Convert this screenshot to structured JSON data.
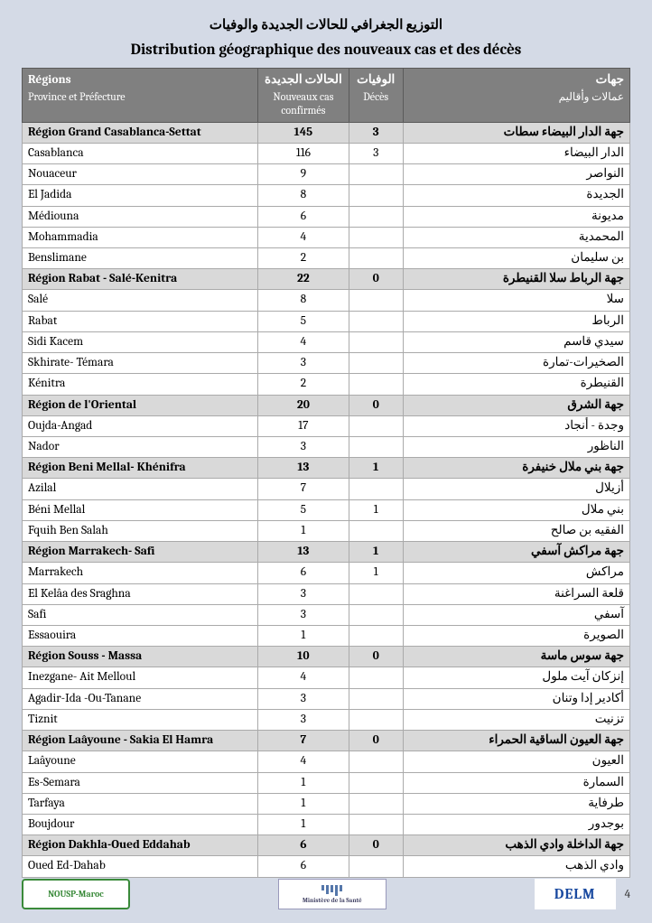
{
  "title_ar": "التوزيع الجغرافي للحالات الجديدة والوفيات",
  "title_fr": "Distribution géographique des nouveaux cas et des décès",
  "header": {
    "regions_fr": "Régions",
    "regions_sub_fr": "Province et Préfecture",
    "cases_ar": "الحالات الجديدة",
    "cases_fr": "Nouveaux cas confirmés",
    "deaths_ar": "الوفيات",
    "deaths_fr": "Décès",
    "regions_ar": "جهات",
    "regions_sub_ar": "عمالات وأقاليم"
  },
  "rows": [
    {
      "type": "region",
      "fr": "Région Grand Casablanca-Settat",
      "cases": "145",
      "deaths": "3",
      "ar": "جهة الدار البيضاء سطات"
    },
    {
      "type": "sub",
      "fr": "Casablanca",
      "cases": "116",
      "deaths": "3",
      "ar": "الدار البيضاء"
    },
    {
      "type": "sub",
      "fr": "Nouaceur",
      "cases": "9",
      "deaths": "",
      "ar": "النواصر"
    },
    {
      "type": "sub",
      "fr": "El Jadida",
      "cases": "8",
      "deaths": "",
      "ar": "الجديدة"
    },
    {
      "type": "sub",
      "fr": "Médiouna",
      "cases": "6",
      "deaths": "",
      "ar": "مديونة"
    },
    {
      "type": "sub",
      "fr": "Mohammadia",
      "cases": "4",
      "deaths": "",
      "ar": "المحمدية"
    },
    {
      "type": "sub",
      "fr": "Benslimane",
      "cases": "2",
      "deaths": "",
      "ar": "بن سليمان"
    },
    {
      "type": "region",
      "fr": "Région Rabat - Salé-Kenitra",
      "cases": "22",
      "deaths": "0",
      "ar": "جهة الرباط سلا القنيطرة"
    },
    {
      "type": "sub",
      "fr": "Salé",
      "cases": "8",
      "deaths": "",
      "ar": "سلا"
    },
    {
      "type": "sub",
      "fr": "Rabat",
      "cases": "5",
      "deaths": "",
      "ar": "الرباط"
    },
    {
      "type": "sub",
      "fr": "Sidi Kacem",
      "cases": "4",
      "deaths": "",
      "ar": "سيدي قاسم"
    },
    {
      "type": "sub",
      "fr": "Skhirate- Témara",
      "cases": "3",
      "deaths": "",
      "ar": "الصخيرات-تمارة"
    },
    {
      "type": "sub",
      "fr": "Kénitra",
      "cases": "2",
      "deaths": "",
      "ar": "القنيطرة"
    },
    {
      "type": "region",
      "fr": "Région de l'Oriental",
      "cases": "20",
      "deaths": "0",
      "ar": "جهة الشرق"
    },
    {
      "type": "sub",
      "fr": "Oujda-Angad",
      "cases": "17",
      "deaths": "",
      "ar": "وجدة - أنجاد"
    },
    {
      "type": "sub",
      "fr": "Nador",
      "cases": "3",
      "deaths": "",
      "ar": "الناظور"
    },
    {
      "type": "region",
      "fr": "Région Beni Mellal- Khénifra",
      "cases": "13",
      "deaths": "1",
      "ar": "جهة بني ملال خنيفرة"
    },
    {
      "type": "sub",
      "fr": "Azilal",
      "cases": "7",
      "deaths": "",
      "ar": "أزيلال"
    },
    {
      "type": "sub",
      "fr": "Béni Mellal",
      "cases": "5",
      "deaths": "1",
      "ar": "بني ملال"
    },
    {
      "type": "sub",
      "fr": "Fquih Ben Salah",
      "cases": "1",
      "deaths": "",
      "ar": "الفقيه بن صالح"
    },
    {
      "type": "region",
      "fr": "Région Marrakech- Safi",
      "cases": "13",
      "deaths": "1",
      "ar": "جهة مراكش آسفي"
    },
    {
      "type": "sub",
      "fr": "Marrakech",
      "cases": "6",
      "deaths": "1",
      "ar": "مراكش"
    },
    {
      "type": "sub",
      "fr": "El Kelâa des  Sraghna",
      "cases": "3",
      "deaths": "",
      "ar": "قلعة السراغنة"
    },
    {
      "type": "sub",
      "fr": "Safi",
      "cases": "3",
      "deaths": "",
      "ar": "آسفي"
    },
    {
      "type": "sub",
      "fr": "Essaouira",
      "cases": "1",
      "deaths": "",
      "ar": "الصويرة"
    },
    {
      "type": "region",
      "fr": "Région Souss - Massa",
      "cases": "10",
      "deaths": "0",
      "ar": "جهة سوس ماسة"
    },
    {
      "type": "sub",
      "fr": "Inezgane- Ait Melloul",
      "cases": "4",
      "deaths": "",
      "ar": "إنزكان آيت ملول"
    },
    {
      "type": "sub",
      "fr": "Agadir-Ida -Ou-Tanane",
      "cases": "3",
      "deaths": "",
      "ar": "أكادير إدا وتنان"
    },
    {
      "type": "sub",
      "fr": "Tiznit",
      "cases": "3",
      "deaths": "",
      "ar": "تزنيت"
    },
    {
      "type": "region",
      "fr": "Région Laâyoune - Sakia El Hamra",
      "cases": "7",
      "deaths": "0",
      "ar": "جهة العيون الساقية الحمراء"
    },
    {
      "type": "sub",
      "fr": "Laâyoune",
      "cases": "4",
      "deaths": "",
      "ar": "العيون"
    },
    {
      "type": "sub",
      "fr": "Es-Semara",
      "cases": "1",
      "deaths": "",
      "ar": "السمارة"
    },
    {
      "type": "sub",
      "fr": "Tarfaya",
      "cases": "1",
      "deaths": "",
      "ar": "طرفاية"
    },
    {
      "type": "sub",
      "fr": "Boujdour",
      "cases": "1",
      "deaths": "",
      "ar": "بوجدور"
    },
    {
      "type": "region",
      "fr": "Région Dakhla-Oued Eddahab",
      "cases": "6",
      "deaths": "0",
      "ar": "جهة الداخلة وادي الذهب"
    },
    {
      "type": "sub",
      "fr": "Oued Ed-Dahab",
      "cases": "6",
      "deaths": "",
      "ar": "وادي الذهب"
    }
  ],
  "footer": {
    "logo1": "NOUSP-Maroc",
    "logo2": "Ministère de la Santé",
    "logo3": "DELM",
    "page": "4"
  }
}
